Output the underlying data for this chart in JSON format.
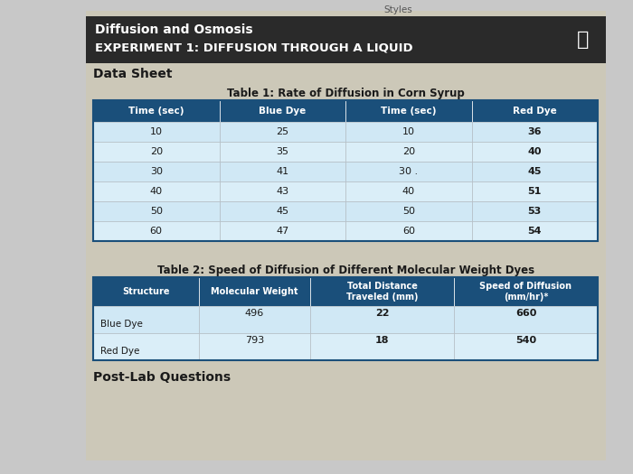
{
  "bg_color": "#c8c8c8",
  "content_bg": "#d8d8d0",
  "header_bar_color": "#2a2a2a",
  "header_bar_text1": "Diffusion and Osmosis",
  "header_bar_text2": "EXPERIMENT 1: DIFFUSION THROUGH A LIQUID",
  "section_title": "Data Sheet",
  "table1_title": "Table 1: Rate of Diffusion in Corn Syrup",
  "table1_header": [
    "Time (sec)",
    "Blue Dye",
    "Time (sec)",
    "Red Dye"
  ],
  "table1_header_color": "#1a4f7a",
  "table1_row_colors": [
    "#d0e8f5",
    "#daeef8"
  ],
  "table1_data": [
    [
      "10",
      "25",
      "10",
      "36"
    ],
    [
      "20",
      "35",
      "20",
      "40"
    ],
    [
      "30",
      "41",
      "30 .",
      "45"
    ],
    [
      "40",
      "43",
      "40",
      "51"
    ],
    [
      "50",
      "45",
      "50",
      "53"
    ],
    [
      "60",
      "47",
      "60",
      "54"
    ]
  ],
  "table2_title": "Table 2: Speed of Diffusion of Different Molecular Weight Dyes",
  "table2_header": [
    "Structure",
    "Molecular Weight",
    "Total Distance\nTraveled (mm)",
    "Speed of Diffusion\n(mm/hr)*"
  ],
  "table2_header_color": "#1a4f7a",
  "table2_row_colors": [
    "#d0e8f5",
    "#daeef8"
  ],
  "table2_data": [
    [
      "Blue Dye",
      "496",
      "22",
      "660"
    ],
    [
      "Red Dye",
      "793",
      "18",
      "540"
    ]
  ],
  "post_lab": "Post-Lab Questions",
  "white_text": "#ffffff",
  "dark_text": "#1a1a1a",
  "table_border_color": "#1a4f7a",
  "top_label": "Styles"
}
